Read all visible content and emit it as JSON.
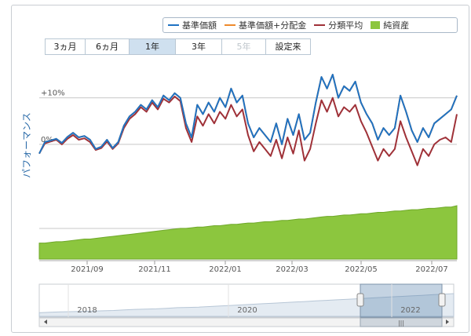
{
  "range_buttons": [
    {
      "label": "3ヵ月",
      "state": "normal"
    },
    {
      "label": "6ヵ月",
      "state": "normal"
    },
    {
      "label": "1年",
      "state": "active"
    },
    {
      "label": "3年",
      "state": "normal"
    },
    {
      "label": "5年",
      "state": "disabled"
    },
    {
      "label": "設定来",
      "state": "normal"
    }
  ],
  "colors": {
    "nav": "#1f72c3",
    "nav_div": "#ee8a2c",
    "category_avg": "#9f3138",
    "net_assets": "#8cc63e",
    "grid": "#c8c8c8"
  },
  "chart_data": {
    "type": "line",
    "ylabel": "パフォーマンス",
    "y_ticks": [
      {
        "label": "+10%",
        "value": 10
      },
      {
        "label": "0%",
        "value": 0
      }
    ],
    "ylim": [
      -12,
      15
    ],
    "x_tick_labels": [
      "2021/09",
      "2021/11",
      "2022/01",
      "2022/03",
      "2022/05",
      "2022/07"
    ],
    "series": [
      {
        "name": "基準価額",
        "color": "#1f72c3",
        "values": [
          -2.0,
          0.5,
          0.8,
          1.2,
          0.3,
          1.6,
          2.5,
          1.5,
          1.8,
          1.0,
          -1.0,
          -0.5,
          1.0,
          -0.8,
          0.5,
          4.0,
          6.0,
          7.0,
          8.5,
          7.5,
          9.5,
          8.0,
          10.5,
          9.5,
          11.0,
          10.0,
          4.5,
          1.5,
          8.5,
          6.5,
          9.0,
          7.0,
          10.0,
          8.0,
          12.0,
          9.0,
          10.5,
          4.5,
          1.5,
          3.5,
          2.0,
          0.5,
          4.5,
          0.0,
          5.5,
          2.0,
          6.5,
          1.0,
          2.5,
          9.0,
          14.5,
          12.0,
          15.0,
          10.0,
          12.5,
          11.5,
          13.5,
          9.0,
          6.5,
          4.5,
          1.0,
          3.5,
          2.0,
          3.5,
          10.5,
          7.0,
          3.0,
          0.5,
          3.5,
          1.5,
          4.5,
          5.5,
          6.5,
          7.5,
          10.5
        ]
      },
      {
        "name": "基準価額+分配金",
        "color": "#ee8a2c",
        "values": [
          -2.0,
          0.5,
          0.8,
          1.2,
          0.3,
          1.6,
          2.5,
          1.5,
          1.8,
          1.0,
          -1.0,
          -0.5,
          1.0,
          -0.8,
          0.5,
          4.0,
          6.0,
          7.0,
          8.5,
          7.5,
          9.5,
          8.0,
          10.5,
          9.5,
          11.0,
          10.0,
          4.5,
          1.5,
          8.5,
          6.5,
          9.0,
          7.0,
          10.0,
          8.0,
          12.0,
          9.0,
          10.5,
          4.5,
          1.5,
          3.5,
          2.0,
          0.5,
          4.5,
          0.0,
          5.5,
          2.0,
          6.5,
          1.0,
          2.5,
          9.0,
          14.5,
          12.0,
          15.0,
          10.0,
          12.5,
          11.5,
          13.5,
          9.0,
          6.5,
          4.5,
          1.0,
          3.5,
          2.0,
          3.5,
          10.5,
          7.0,
          3.0,
          0.5,
          3.5,
          1.5,
          4.5,
          5.5,
          6.5,
          7.5,
          10.5
        ]
      },
      {
        "name": "分類平均",
        "color": "#9f3138",
        "values": [
          -2.0,
          0.2,
          0.6,
          1.0,
          0.0,
          1.2,
          2.0,
          1.0,
          1.3,
          0.5,
          -1.2,
          -0.8,
          0.6,
          -1.0,
          0.2,
          3.5,
          5.5,
          6.5,
          8.0,
          7.0,
          9.0,
          7.5,
          9.8,
          9.0,
          10.3,
          9.3,
          3.5,
          0.5,
          6.0,
          4.0,
          6.5,
          4.5,
          7.0,
          5.5,
          8.5,
          6.0,
          7.5,
          2.0,
          -1.5,
          0.5,
          -1.0,
          -2.5,
          1.0,
          -3.0,
          1.5,
          -2.0,
          3.0,
          -3.5,
          -1.0,
          4.5,
          9.5,
          7.0,
          10.0,
          6.0,
          8.0,
          7.0,
          8.5,
          5.0,
          2.5,
          -0.5,
          -3.5,
          -1.0,
          -2.5,
          -1.0,
          5.0,
          1.5,
          -1.5,
          -4.5,
          -1.0,
          -2.5,
          0.0,
          1.0,
          1.5,
          0.5,
          6.5
        ]
      }
    ],
    "area_series": {
      "name": "純資産",
      "color": "#8cc63e",
      "values": [
        12,
        12,
        12.5,
        13,
        13,
        13.5,
        14,
        14.5,
        15,
        15,
        15.5,
        16,
        16.5,
        17,
        17.5,
        18,
        18.5,
        19,
        19.5,
        20,
        20.5,
        21,
        21.5,
        22,
        22.5,
        23,
        23,
        23.5,
        24,
        24,
        24.5,
        25,
        25,
        25.5,
        26,
        26,
        26.5,
        27,
        27,
        27.5,
        28,
        28,
        28.5,
        29,
        29,
        29.5,
        30,
        30,
        30.5,
        31,
        31.5,
        32,
        32,
        32.5,
        33,
        33,
        33.5,
        34,
        34,
        34.5,
        35,
        35,
        35.5,
        36,
        36,
        36.5,
        37,
        37,
        37.5,
        38,
        38,
        38.5,
        39,
        39,
        40
      ]
    },
    "navigator": {
      "x_tick_labels": [
        "2018",
        "2020",
        "2022"
      ],
      "values": [
        5,
        6,
        6.5,
        7,
        7.5,
        8,
        8.5,
        9,
        10,
        11,
        11.5,
        12,
        13,
        14,
        14.5,
        15,
        16,
        17,
        18,
        19,
        20,
        21,
        22,
        23,
        24,
        25,
        26,
        27,
        28,
        29,
        30,
        31,
        32,
        33,
        34,
        35,
        36,
        37,
        38,
        39
      ]
    }
  }
}
